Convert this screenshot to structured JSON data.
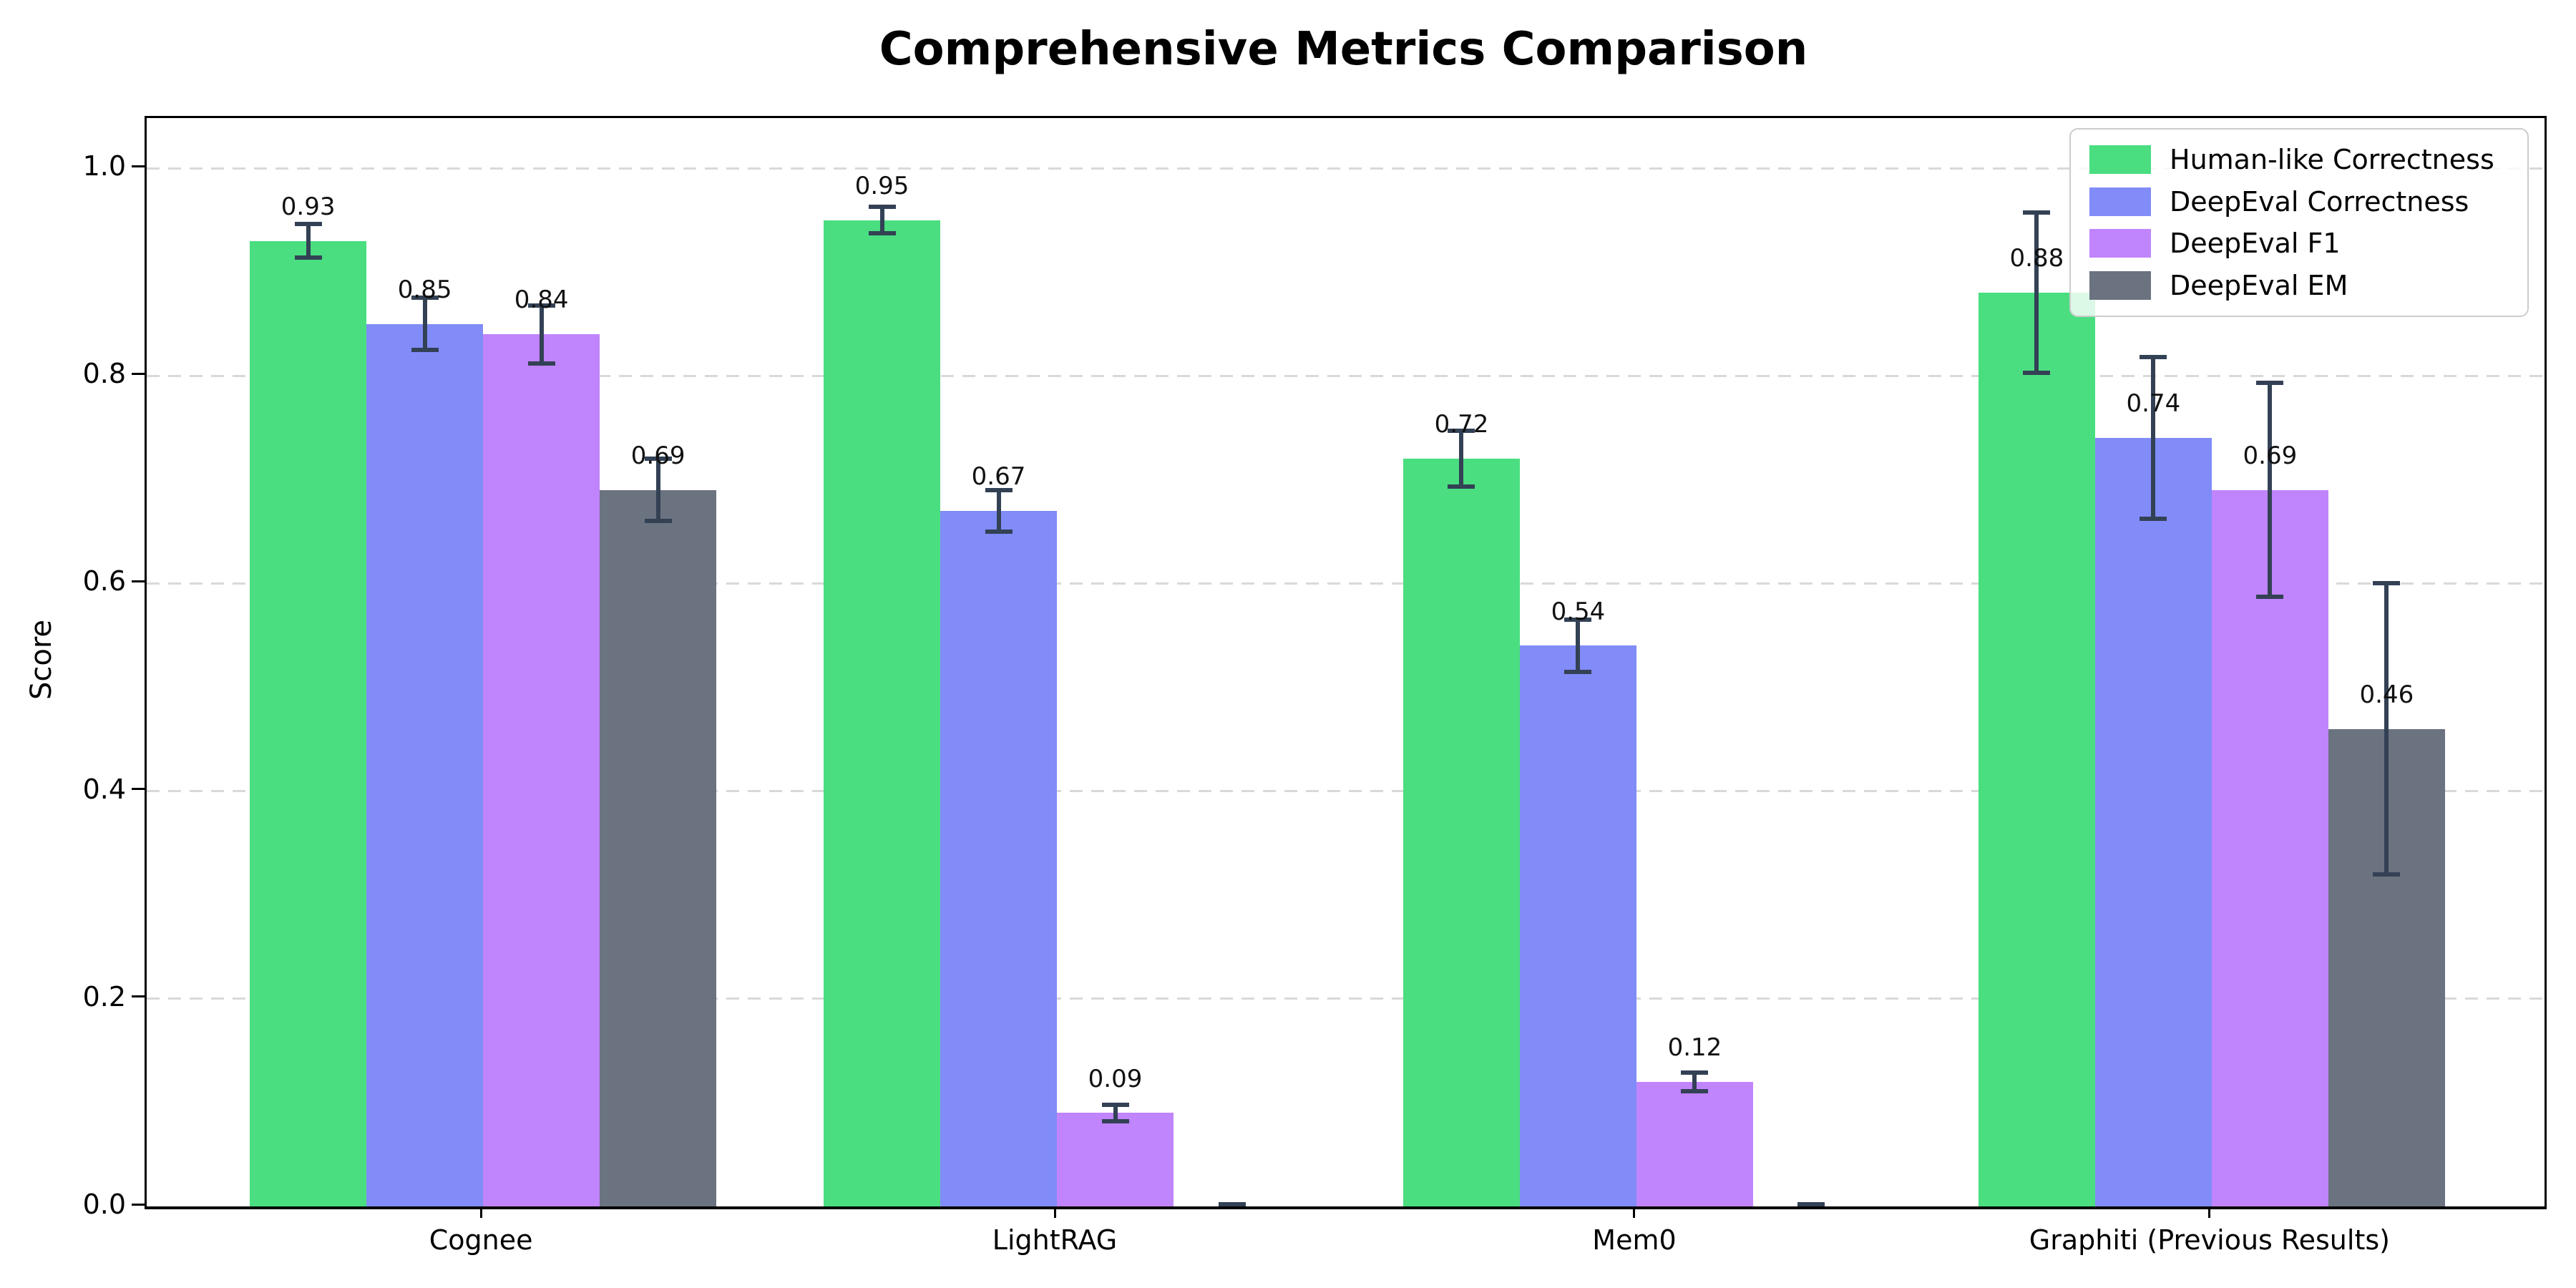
{
  "title": "Comprehensive Metrics Comparison",
  "chart_data": {
    "type": "bar",
    "title": "Comprehensive Metrics Comparison",
    "xlabel": "",
    "ylabel": "Score",
    "ylim": [
      0.0,
      1.046
    ],
    "yticks": [
      "0.0",
      "0.2",
      "0.4",
      "0.6",
      "0.8",
      "1.0"
    ],
    "ytick_values": [
      0.0,
      0.2,
      0.4,
      0.6,
      0.8,
      1.0
    ],
    "grid": "horizontal-dashed",
    "legend_position": "upper-right",
    "categories": [
      "Cognee",
      "LightRAG",
      "Mem0",
      "Graphiti (Previous Results)"
    ],
    "series": [
      {
        "name": "Human-like Correctness",
        "color": "#4ade80",
        "values": [
          0.93,
          0.95,
          0.72,
          0.88
        ],
        "errors": [
          0.016,
          0.013,
          0.027,
          0.077
        ],
        "labels": [
          "0.93",
          "0.95",
          "0.72",
          "0.88"
        ]
      },
      {
        "name": "DeepEval Correctness",
        "color": "#818cf8",
        "values": [
          0.85,
          0.67,
          0.54,
          0.74
        ],
        "errors": [
          0.025,
          0.02,
          0.025,
          0.078
        ],
        "labels": [
          "0.85",
          "0.67",
          "0.54",
          "0.74"
        ]
      },
      {
        "name": "DeepEval F1",
        "color": "#c084fc",
        "values": [
          0.84,
          0.09,
          0.12,
          0.69
        ],
        "errors": [
          0.028,
          0.008,
          0.009,
          0.103
        ],
        "labels": [
          "0.84",
          "0.09",
          "0.12",
          "0.69"
        ]
      },
      {
        "name": "DeepEval EM",
        "color": "#6b7280",
        "values": [
          0.69,
          0.0,
          0.0,
          0.46
        ],
        "errors": [
          0.03,
          0.002,
          0.002,
          0.14
        ],
        "labels": [
          "0.69",
          "",
          "",
          "0.46"
        ]
      }
    ],
    "colors": {
      "error_bar": "#334155",
      "gridline": "#d9d9d9",
      "spine": "#000000"
    }
  }
}
